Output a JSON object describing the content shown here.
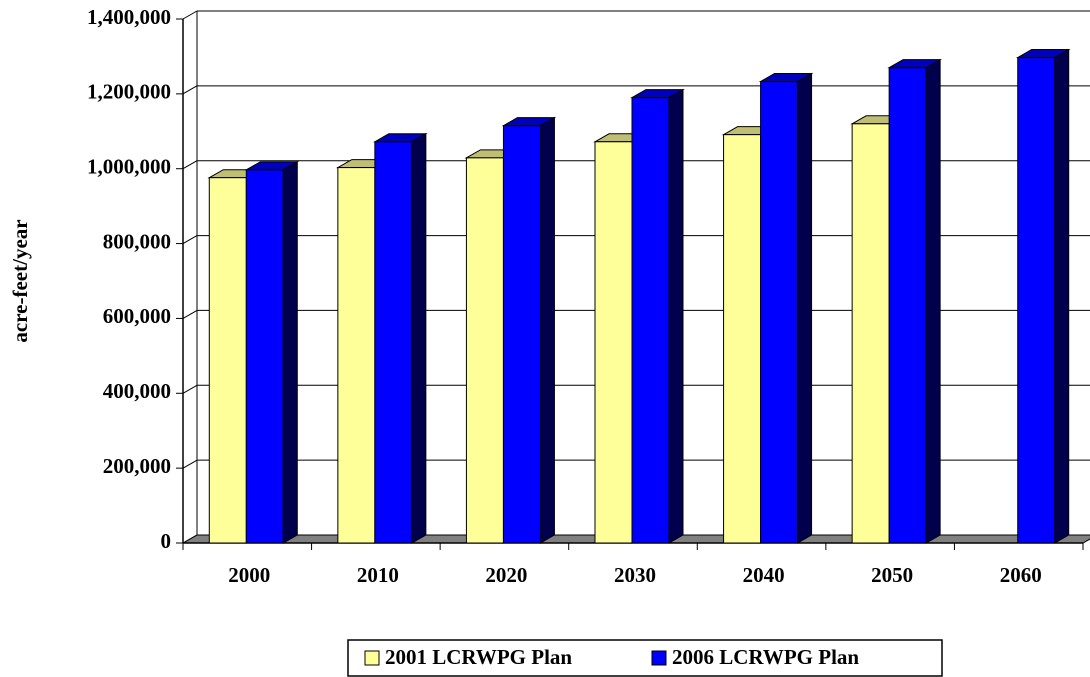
{
  "chart_data": {
    "type": "bar3d",
    "y_label": "acre-feet/year",
    "categories": [
      "2000",
      "2010",
      "2020",
      "2030",
      "2040",
      "2050",
      "2060"
    ],
    "series": [
      {
        "name": "2001 LCRWPG Plan",
        "color": "#ffff99",
        "values": [
          976000,
          1003000,
          1029000,
          1072000,
          1091000,
          1120000,
          null
        ]
      },
      {
        "name": "2006 LCRWPG Plan",
        "color": "#0000ff",
        "values": [
          997000,
          1072000,
          1115000,
          1190000,
          1233000,
          1270000,
          1297000
        ]
      }
    ],
    "ylim": [
      0,
      1400000
    ],
    "yticks": [
      {
        "value": 0,
        "label": "0"
      },
      {
        "value": 200000,
        "label": "200,000"
      },
      {
        "value": 400000,
        "label": "400,000"
      },
      {
        "value": 600000,
        "label": "600,000"
      },
      {
        "value": 800000,
        "label": "800,000"
      },
      {
        "value": 1000000,
        "label": "1,000,000"
      },
      {
        "value": 1200000,
        "label": "1,200,000"
      },
      {
        "value": 1400000,
        "label": "1,400,000"
      }
    ],
    "grid": true
  }
}
